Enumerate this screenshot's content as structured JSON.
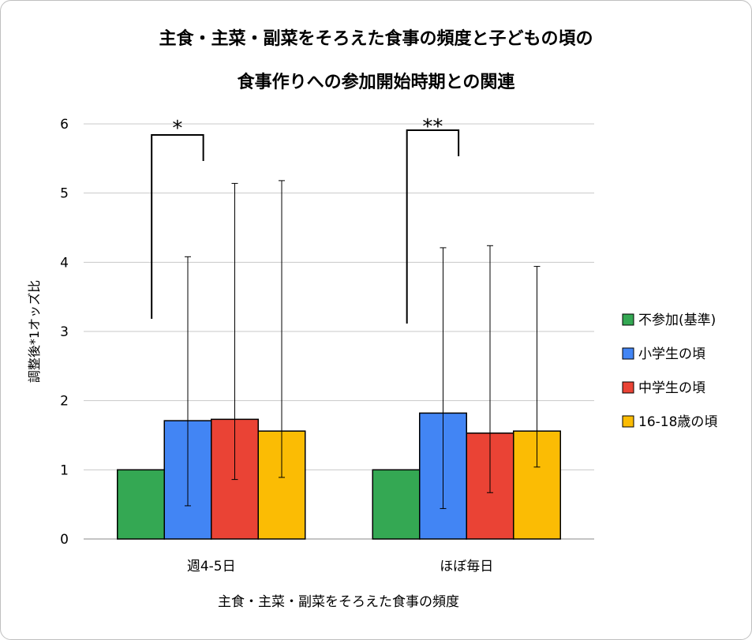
{
  "chart_data": {
    "type": "bar",
    "title_line1": "主食・主菜・副菜をそろえた食事の頻度と子どもの頃の",
    "title_line2": "食事作りへの参加開始時期との関連",
    "xlabel": "主食・主菜・副菜をそろえた食事の頻度",
    "ylabel": "調整後*1オッズ比",
    "ylim": [
      0,
      6
    ],
    "yticks": [
      "0",
      "1",
      "2",
      "3",
      "4",
      "5",
      "6"
    ],
    "grid": true,
    "legend_position": "right",
    "categories": [
      "週4-5日",
      "ほぼ毎日"
    ],
    "series": [
      {
        "name": "不参加(基準)",
        "color": "#34a853",
        "values": [
          1.0,
          1.0
        ],
        "err_low": [
          null,
          null
        ],
        "err_high": [
          null,
          null
        ]
      },
      {
        "name": "小学生の頃",
        "color": "#4285f4",
        "values": [
          1.71,
          1.82
        ],
        "err_low": [
          0.48,
          0.44
        ],
        "err_high": [
          4.08,
          4.21
        ]
      },
      {
        "name": "中学生の頃",
        "color": "#ea4335",
        "values": [
          1.73,
          1.53
        ],
        "err_low": [
          0.86,
          0.67
        ],
        "err_high": [
          5.14,
          4.24
        ]
      },
      {
        "name": "16-18歳の頃",
        "color": "#fbbc04",
        "values": [
          1.56,
          1.56
        ],
        "err_low": [
          0.89,
          1.04
        ],
        "err_high": [
          5.18,
          3.94
        ]
      }
    ],
    "annotations": [
      {
        "category": "週4-5日",
        "label": "*"
      },
      {
        "category": "ほぼ毎日",
        "label": "**"
      }
    ]
  }
}
